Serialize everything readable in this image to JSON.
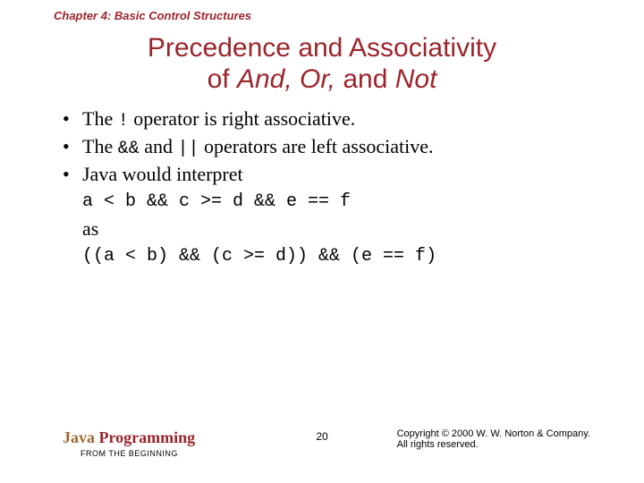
{
  "chapter_header": "Chapter 4: Basic Control Structures",
  "title": {
    "line1": "Precedence and Associativity",
    "line2_prefix": "of ",
    "line2_and": "And,",
    "line2_or": " Or,",
    "line2_mid": " and ",
    "line2_not": "Not"
  },
  "bullets": {
    "b1_pre": "The ",
    "b1_op": "!",
    "b1_post": " operator is right associative.",
    "b2_pre": "The ",
    "b2_op1": "&&",
    "b2_mid": " and ",
    "b2_op2": "||",
    "b2_post": " operators are left associative.",
    "b3": "Java would interpret"
  },
  "code": {
    "expr1": "a < b  &&  c >= d  &&  e == f",
    "as": "as",
    "expr2": "((a < b)  &&  (c >= d))  &&  (e == f)"
  },
  "footer": {
    "book_java": "Java",
    "book_prog": " Programming",
    "book_sub": "FROM THE BEGINNING",
    "page": "20",
    "copyright_l1": "Copyright © 2000 W. W. Norton & Company.",
    "copyright_l2": "All rights reserved."
  },
  "colors": {
    "heading": "#9b252c",
    "java_brown": "#a16832",
    "text": "#000000",
    "background": "#ffffff"
  }
}
